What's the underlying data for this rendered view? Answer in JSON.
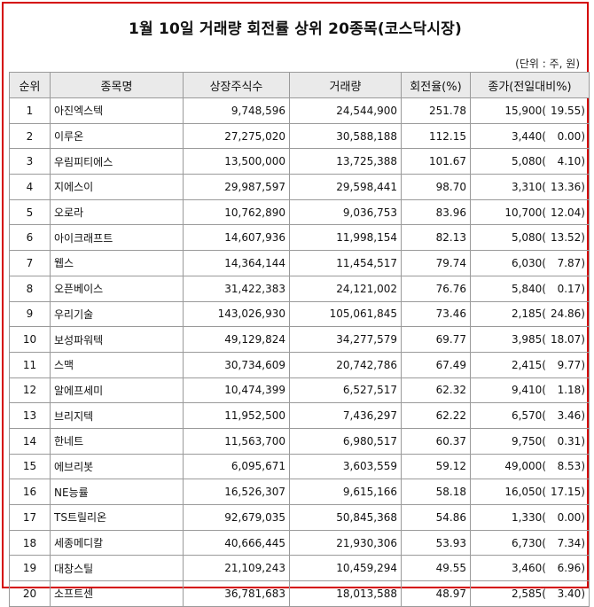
{
  "title": "1월 10일 거래량 회전률 상위 20종목(코스닥시장)",
  "unit_note": "(단위 : 주, 원)",
  "colors": {
    "frame_border": "#d40000",
    "header_bg": "#eaeaea",
    "grid_line": "#9a9a9a"
  },
  "columns": [
    "순위",
    "종목명",
    "상장주식수",
    "거래량",
    "회전율(%)",
    "종가(전일대비%)"
  ],
  "rows": [
    {
      "rank": "1",
      "name": "아진엑스텍",
      "listed": "9,748,596",
      "volume": "24,544,900",
      "turnover": "251.78",
      "price": "15,900(",
      "change": "19.55)"
    },
    {
      "rank": "2",
      "name": "이루온",
      "listed": "27,275,020",
      "volume": "30,588,188",
      "turnover": "112.15",
      "price": "3,440(",
      "change": "0.00)"
    },
    {
      "rank": "3",
      "name": "우림피티에스",
      "listed": "13,500,000",
      "volume": "13,725,388",
      "turnover": "101.67",
      "price": "5,080(",
      "change": "4.10)"
    },
    {
      "rank": "4",
      "name": "지에스이",
      "listed": "29,987,597",
      "volume": "29,598,441",
      "turnover": "98.70",
      "price": "3,310(",
      "change": "13.36)"
    },
    {
      "rank": "5",
      "name": "오로라",
      "listed": "10,762,890",
      "volume": "9,036,753",
      "turnover": "83.96",
      "price": "10,700(",
      "change": "12.04)"
    },
    {
      "rank": "6",
      "name": "아이크래프트",
      "listed": "14,607,936",
      "volume": "11,998,154",
      "turnover": "82.13",
      "price": "5,080(",
      "change": "13.52)"
    },
    {
      "rank": "7",
      "name": "웹스",
      "listed": "14,364,144",
      "volume": "11,454,517",
      "turnover": "79.74",
      "price": "6,030(",
      "change": "7.87)"
    },
    {
      "rank": "8",
      "name": "오픈베이스",
      "listed": "31,422,383",
      "volume": "24,121,002",
      "turnover": "76.76",
      "price": "5,840(",
      "change": "0.17)"
    },
    {
      "rank": "9",
      "name": "우리기술",
      "listed": "143,026,930",
      "volume": "105,061,845",
      "turnover": "73.46",
      "price": "2,185(",
      "change": "24.86)"
    },
    {
      "rank": "10",
      "name": "보성파워텍",
      "listed": "49,129,824",
      "volume": "34,277,579",
      "turnover": "69.77",
      "price": "3,985(",
      "change": "18.07)"
    },
    {
      "rank": "11",
      "name": "스맥",
      "listed": "30,734,609",
      "volume": "20,742,786",
      "turnover": "67.49",
      "price": "2,415(",
      "change": "9.77)"
    },
    {
      "rank": "12",
      "name": "알에프세미",
      "listed": "10,474,399",
      "volume": "6,527,517",
      "turnover": "62.32",
      "price": "9,410(",
      "change": "1.18)"
    },
    {
      "rank": "13",
      "name": "브리지텍",
      "listed": "11,952,500",
      "volume": "7,436,297",
      "turnover": "62.22",
      "price": "6,570(",
      "change": "3.46)"
    },
    {
      "rank": "14",
      "name": "한네트",
      "listed": "11,563,700",
      "volume": "6,980,517",
      "turnover": "60.37",
      "price": "9,750(",
      "change": "0.31)"
    },
    {
      "rank": "15",
      "name": "에브리봇",
      "listed": "6,095,671",
      "volume": "3,603,559",
      "turnover": "59.12",
      "price": "49,000(",
      "change": "8.53)"
    },
    {
      "rank": "16",
      "name": "NE능률",
      "listed": "16,526,307",
      "volume": "9,615,166",
      "turnover": "58.18",
      "price": "16,050(",
      "change": "17.15)"
    },
    {
      "rank": "17",
      "name": "TS트릴리온",
      "listed": "92,679,035",
      "volume": "50,845,368",
      "turnover": "54.86",
      "price": "1,330(",
      "change": "0.00)"
    },
    {
      "rank": "18",
      "name": "세종메디칼",
      "listed": "40,666,445",
      "volume": "21,930,306",
      "turnover": "53.93",
      "price": "6,730(",
      "change": "7.34)"
    },
    {
      "rank": "19",
      "name": "대창스틸",
      "listed": "21,109,243",
      "volume": "10,459,294",
      "turnover": "49.55",
      "price": "3,460(",
      "change": "6.96)"
    },
    {
      "rank": "20",
      "name": "소프트센",
      "listed": "36,781,683",
      "volume": "18,013,588",
      "turnover": "48.97",
      "price": "2,585(",
      "change": "3.40)"
    }
  ]
}
